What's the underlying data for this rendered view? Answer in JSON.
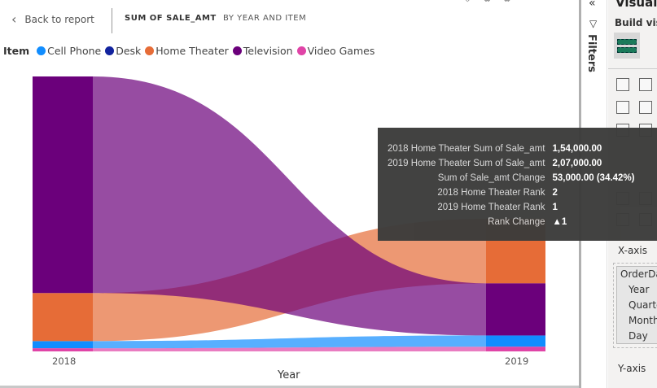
{
  "header": {
    "back_label": "Back to report",
    "title": "SUM OF SALE_AMT",
    "subtitle": "BY YEAR AND ITEM"
  },
  "legend": {
    "title": "Item",
    "items": [
      {
        "label": "Cell Phone",
        "color": "#118DFF"
      },
      {
        "label": "Desk",
        "color": "#12239E"
      },
      {
        "label": "Home Theater",
        "color": "#E66C37"
      },
      {
        "label": "Television",
        "color": "#6B007B"
      },
      {
        "label": "Video Games",
        "color": "#E044A7"
      }
    ]
  },
  "chart_data": {
    "type": "ribbon",
    "categories": [
      "2018",
      "2019"
    ],
    "xlabel": "Year",
    "series": [
      {
        "name": "Cell Phone",
        "color": "#118DFF",
        "values": [
          23000,
          36000
        ]
      },
      {
        "name": "Desk",
        "color": "#12239E",
        "values": [
          0,
          0
        ]
      },
      {
        "name": "Home Theater",
        "color": "#E66C37",
        "values": [
          154000,
          207000
        ]
      },
      {
        "name": "Television",
        "color": "#6B007B",
        "values": [
          694000,
          167000
        ]
      },
      {
        "name": "Video Games",
        "color": "#E044A7",
        "values": [
          10000,
          15000
        ]
      }
    ]
  },
  "tooltip": {
    "rows": [
      {
        "k": "2018 Home Theater Sum of Sale_amt",
        "v": "1,54,000.00"
      },
      {
        "k": "2019 Home Theater Sum of Sale_amt",
        "v": "2,07,000.00"
      },
      {
        "k": "Sum of Sale_amt Change",
        "v": "53,000.00 (34.42%)"
      },
      {
        "k": "2018 Home Theater Rank",
        "v": "2"
      },
      {
        "k": "2019 Home Theater Rank",
        "v": "1"
      },
      {
        "k": "Rank Change",
        "v": "▲1"
      }
    ]
  },
  "filters": {
    "label": "Filters"
  },
  "visualizations": {
    "title": "Visualizations",
    "build_label": "Build visual",
    "xaxis_label": "X-axis",
    "field": "OrderDate",
    "hierarchy": [
      "Year",
      "Quarter",
      "Month",
      "Day"
    ],
    "yaxis_label": "Y-axis"
  }
}
